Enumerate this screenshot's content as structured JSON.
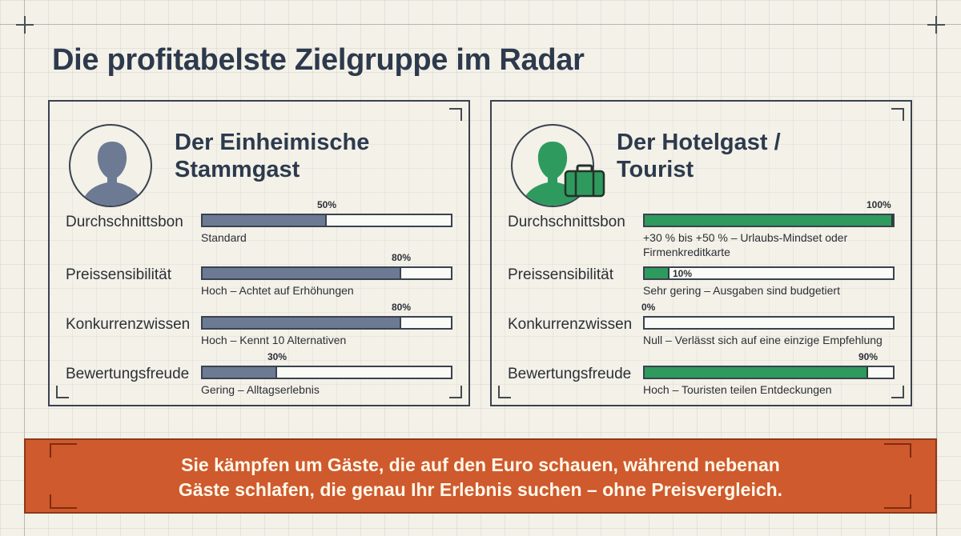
{
  "title": "Die profitabelste Zielgruppe im Radar",
  "cards": [
    {
      "title_line1": "Der Einheimische",
      "title_line2": "Stammgast",
      "icon": "person-icon",
      "color": "#6d7a94",
      "metrics": [
        {
          "label": "Durchschnittsbon",
          "value": 50,
          "pct_label": "50%",
          "desc": "Standard"
        },
        {
          "label": "Preissensibilität",
          "value": 80,
          "pct_label": "80%",
          "desc": "Hoch – Achtet auf Erhöhungen"
        },
        {
          "label": "Konkurrenzwissen",
          "value": 80,
          "pct_label": "80%",
          "desc": "Hoch – Kennt 10 Alternativen"
        },
        {
          "label": "Bewertungsfreude",
          "value": 30,
          "pct_label": "30%",
          "desc": "Gering – Alltagserlebnis"
        }
      ]
    },
    {
      "title_line1": "Der Hotelgast /",
      "title_line2": "Tourist",
      "icon": "traveler-with-suitcase-icon",
      "color": "#2f9a5e",
      "metrics": [
        {
          "label": "Durchschnittsbon",
          "value": 100,
          "pct_label": "100%",
          "desc": "+30 % bis +50 % – Urlaubs-Mindset oder Firmenkreditkarte"
        },
        {
          "label": "Preissensibilität",
          "value": 10,
          "pct_label": "10%",
          "desc": "Sehr gering – Ausgaben sind budgetiert"
        },
        {
          "label": "Konkurrenzwissen",
          "value": 0,
          "pct_label": "0%",
          "desc": "Null – Verlässt sich auf eine einzige Empfehlung"
        },
        {
          "label": "Bewertungsfreude",
          "value": 90,
          "pct_label": "90%",
          "desc": "Hoch – Touristen teilen Entdeckungen"
        }
      ]
    }
  ],
  "banner": {
    "line1": "Sie kämpfen um Gäste, die auf den Euro schauen, während nebenan",
    "line2": "Gäste schlafen, die genau Ihr Erlebnis suchen – ohne Preisvergleich.",
    "color": "#cf5a2d"
  }
}
